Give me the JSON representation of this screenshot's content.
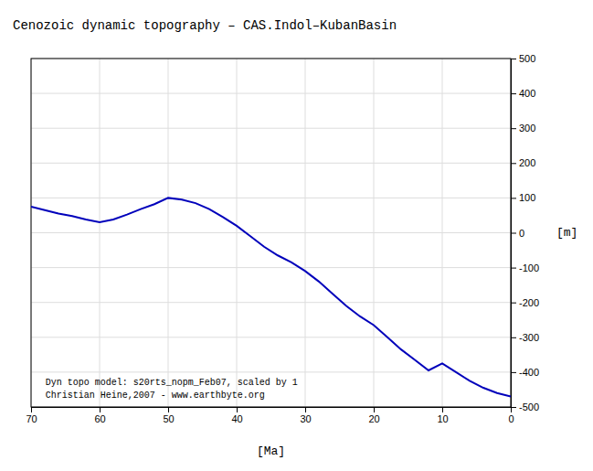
{
  "chart_data": {
    "type": "line",
    "title": "Cenozoic dynamic topography – CAS.Indol–KubanBasin",
    "xlabel": "[Ma]",
    "ylabel": "[m]",
    "annotations": [
      "Dyn topo model: s20rts_nopm_Feb07, scaled by 1",
      "Christian Heine,2007 - www.earthbyte.org"
    ],
    "x": [
      70,
      68,
      66,
      64,
      62,
      60,
      58,
      56,
      54,
      52,
      50,
      48,
      46,
      44,
      42,
      40,
      38,
      36,
      34,
      32,
      30,
      28,
      26,
      24,
      22,
      20,
      18,
      16,
      14,
      12,
      10,
      8,
      6,
      4,
      2,
      0
    ],
    "values": [
      75,
      65,
      55,
      48,
      38,
      30,
      38,
      52,
      68,
      82,
      100,
      95,
      85,
      68,
      45,
      20,
      -10,
      -40,
      -65,
      -85,
      -110,
      -140,
      -175,
      -210,
      -240,
      -265,
      -300,
      -335,
      -365,
      -395,
      -375,
      -400,
      -425,
      -445,
      -460,
      -470
    ],
    "color": "#0000BB",
    "xlim": [
      70,
      0
    ],
    "ylim": [
      -500,
      500
    ],
    "xticks": [
      70,
      60,
      50,
      40,
      30,
      20,
      10,
      0
    ],
    "yticks": [
      -500,
      -400,
      -300,
      -200,
      -100,
      0,
      100,
      200,
      300,
      400,
      500
    ],
    "grid": true
  }
}
